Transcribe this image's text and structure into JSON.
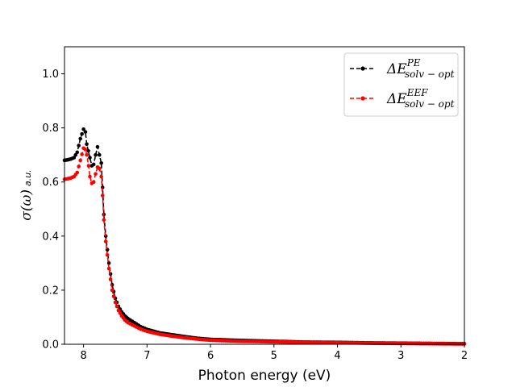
{
  "chart_data": {
    "type": "line",
    "title": "",
    "xlabel": "Photon energy (eV)",
    "ylabel": {
      "main": "σ(ω)",
      "sub": "a.u."
    },
    "xlim": [
      8.3,
      2.0
    ],
    "ylim": [
      0.0,
      1.1
    ],
    "xticks": [
      8,
      7,
      6,
      5,
      4,
      3,
      2
    ],
    "xtick_labels": [
      "8",
      "7",
      "6",
      "5",
      "4",
      "3",
      "2"
    ],
    "yticks": [
      0.0,
      0.2,
      0.4,
      0.6,
      0.8,
      1.0
    ],
    "ytick_labels": [
      "0.0",
      "0.2",
      "0.4",
      "0.6",
      "0.8",
      "1.0"
    ],
    "grid": false,
    "legend_position": "top-right",
    "series": [
      {
        "name": "ΔE_{solv-opt}^{PE}",
        "label_main": "ΔE",
        "label_sup": "PE",
        "label_sub": "solv − opt",
        "color": "#000000",
        "style": "dashed-dots",
        "x": [
          8.3,
          8.25,
          8.2,
          8.15,
          8.1,
          8.05,
          8.0,
          7.97,
          7.95,
          7.9,
          7.87,
          7.84,
          7.81,
          7.78,
          7.75,
          7.72,
          7.7,
          7.68,
          7.65,
          7.6,
          7.55,
          7.5,
          7.45,
          7.4,
          7.35,
          7.3,
          7.2,
          7.1,
          7.0,
          6.8,
          6.6,
          6.4,
          6.2,
          6.0,
          5.5,
          5.0,
          4.5,
          4.0,
          3.5,
          3.0,
          2.5,
          2.0
        ],
        "y": [
          0.68,
          0.682,
          0.685,
          0.69,
          0.71,
          0.76,
          0.795,
          0.785,
          0.74,
          0.69,
          0.66,
          0.665,
          0.7,
          0.73,
          0.7,
          0.67,
          0.58,
          0.48,
          0.4,
          0.3,
          0.22,
          0.17,
          0.14,
          0.12,
          0.105,
          0.095,
          0.08,
          0.065,
          0.055,
          0.042,
          0.035,
          0.028,
          0.022,
          0.018,
          0.014,
          0.011,
          0.008,
          0.007,
          0.005,
          0.004,
          0.003,
          0.002
        ]
      },
      {
        "name": "ΔE_{solv-opt}^{EEF}",
        "label_main": "ΔE",
        "label_sup": "EEF",
        "label_sub": "solv − opt",
        "color": "#ff0000",
        "style": "dashed-dots",
        "x": [
          8.3,
          8.25,
          8.2,
          8.15,
          8.1,
          8.05,
          8.0,
          7.97,
          7.95,
          7.92,
          7.9,
          7.87,
          7.84,
          7.81,
          7.78,
          7.75,
          7.72,
          7.7,
          7.68,
          7.65,
          7.6,
          7.55,
          7.5,
          7.45,
          7.4,
          7.35,
          7.3,
          7.2,
          7.1,
          7.0,
          6.8,
          6.6,
          6.4,
          6.2,
          6.0,
          5.5,
          5.0,
          4.5,
          4.0,
          3.5,
          3.0,
          2.5,
          2.0
        ],
        "y": [
          0.61,
          0.612,
          0.615,
          0.62,
          0.635,
          0.68,
          0.725,
          0.72,
          0.7,
          0.66,
          0.62,
          0.595,
          0.6,
          0.63,
          0.655,
          0.65,
          0.62,
          0.55,
          0.46,
          0.38,
          0.28,
          0.2,
          0.155,
          0.125,
          0.105,
          0.09,
          0.08,
          0.068,
          0.056,
          0.048,
          0.037,
          0.03,
          0.024,
          0.019,
          0.015,
          0.011,
          0.009,
          0.007,
          0.006,
          0.004,
          0.003,
          0.002,
          0.001
        ]
      }
    ]
  }
}
